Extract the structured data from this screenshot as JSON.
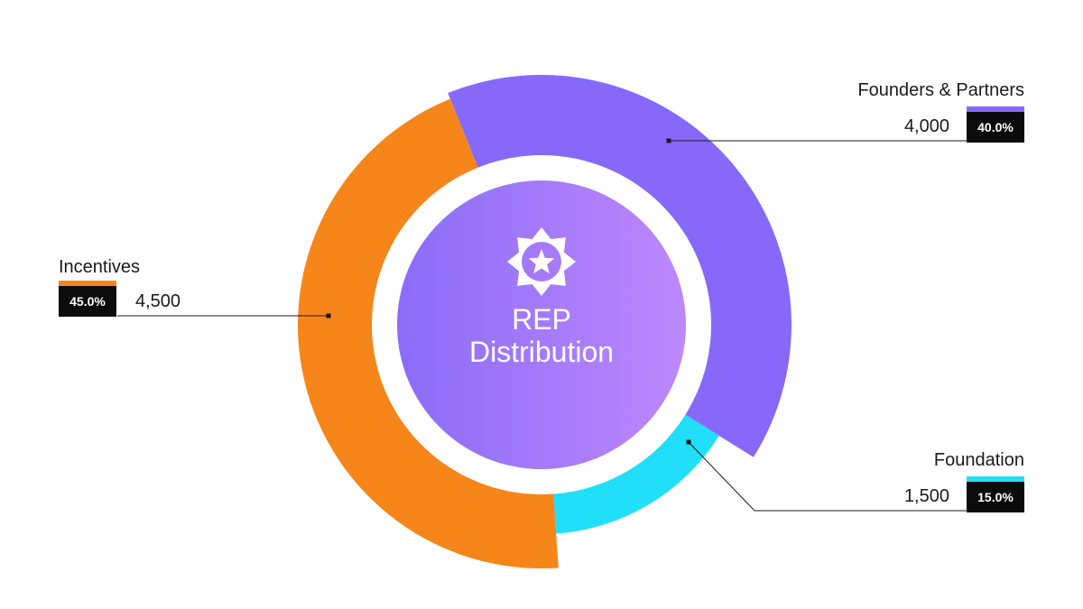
{
  "chart_data": {
    "type": "pie",
    "title": "REP\nDistribution",
    "total_label": "",
    "slices": [
      {
        "name": "Founders & Partners",
        "value": 4000,
        "percent": "40.0%",
        "value_label": "4,000",
        "color": "#8769f9"
      },
      {
        "name": "Foundation",
        "value": 1500,
        "percent": "15.0%",
        "value_label": "1,500",
        "color": "#21dff8"
      },
      {
        "name": "Incentives",
        "value": 4500,
        "percent": "45.0%",
        "value_label": "4,500",
        "color": "#f68619"
      }
    ]
  },
  "center": {
    "icon": "star-badge-icon",
    "gradient_start": "#8b6cf8",
    "gradient_end": "#bd88fd"
  }
}
